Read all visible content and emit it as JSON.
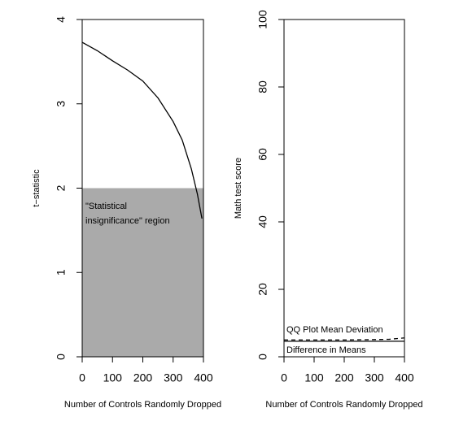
{
  "chart_data": [
    {
      "type": "line",
      "ylabel": "t−statistic",
      "xlabel": "Number of Controls Randomly Dropped",
      "x": [
        0,
        50,
        100,
        150,
        200,
        250,
        300,
        330,
        360,
        380,
        395
      ],
      "series": [
        {
          "values": [
            3.73,
            3.63,
            3.51,
            3.4,
            3.27,
            3.07,
            2.79,
            2.57,
            2.23,
            1.93,
            1.64
          ],
          "color": "#000000",
          "linestyle": "solid"
        }
      ],
      "shade_ylim": [
        0,
        2
      ],
      "shade_color": "#aaaaaa",
      "annotation": [
        "\"Statistical",
        "insignificance\" region"
      ],
      "xlim": [
        0,
        400
      ],
      "ylim": [
        0,
        4
      ],
      "xticks": [
        0,
        100,
        200,
        300,
        400
      ],
      "yticks": [
        0,
        1,
        2,
        3,
        4
      ]
    },
    {
      "type": "line",
      "ylabel": "Math test score",
      "xlabel": "Number of Controls Randomly Dropped",
      "x": [
        0,
        100,
        200,
        300,
        350,
        400
      ],
      "series": [
        {
          "name": "QQ Plot Mean Deviation",
          "values": [
            5.0,
            5.0,
            5.0,
            5.1,
            5.2,
            5.6
          ],
          "color": "#000000",
          "linestyle": "dashed"
        },
        {
          "name": "Difference in Means",
          "values": [
            4.6,
            4.6,
            4.6,
            4.6,
            4.6,
            4.6
          ],
          "color": "#000000",
          "linestyle": "solid"
        }
      ],
      "xlim": [
        0,
        400
      ],
      "ylim": [
        0,
        100
      ],
      "xticks": [
        0,
        100,
        200,
        300,
        400
      ],
      "yticks": [
        0,
        20,
        40,
        60,
        80,
        100
      ]
    }
  ]
}
